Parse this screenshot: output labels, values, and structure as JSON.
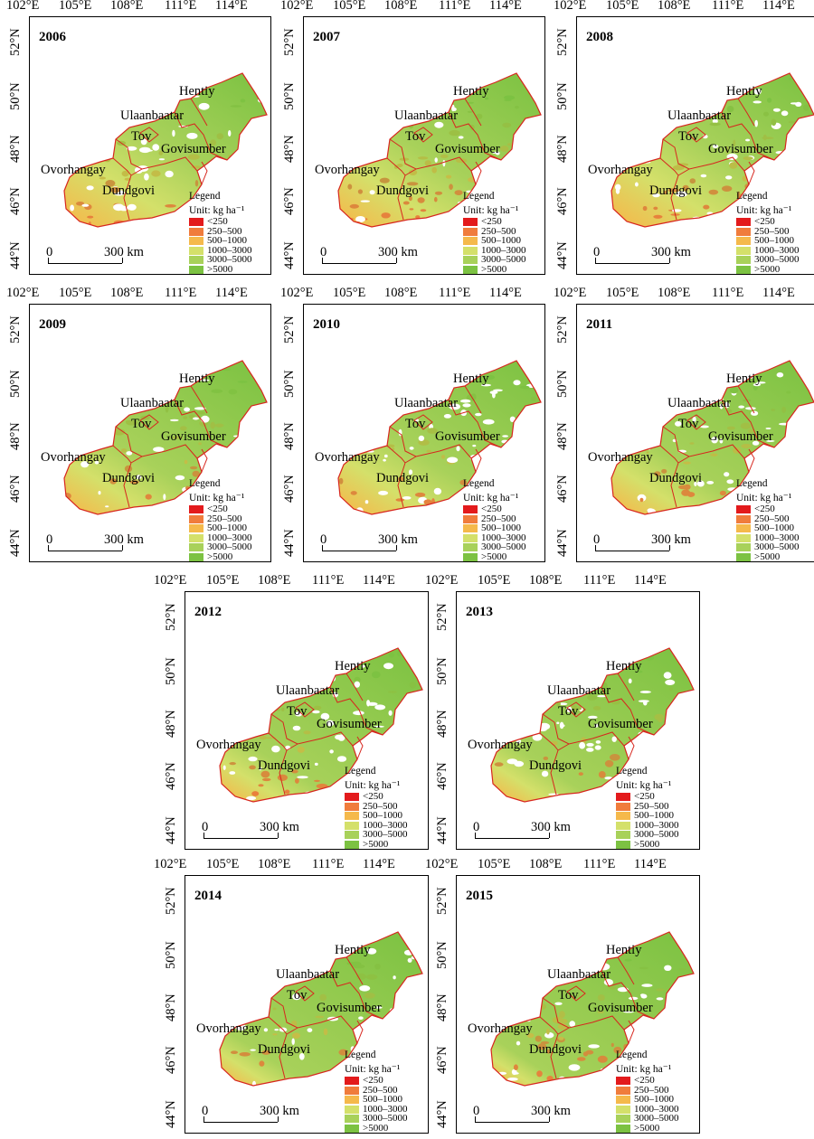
{
  "longitude_labels": [
    "102°E",
    "105°E",
    "108°E",
    "111°E",
    "114°E"
  ],
  "latitude_labels": [
    "52°N",
    "50°N",
    "48°N",
    "46°N",
    "44°N"
  ],
  "years": [
    "2006",
    "2007",
    "2008",
    "2009",
    "2010",
    "2011",
    "2012",
    "2013",
    "2014",
    "2015"
  ],
  "regions": {
    "hentiy": "Hentiy",
    "ulaanbaatar": "Ulaanbaatar",
    "tov": "Tov",
    "govisumber": "Govisumber",
    "ovorhangay": "Ovorhangay",
    "dundgovi": "Dundgovi"
  },
  "legend": {
    "title": "Legend",
    "unit": "Unit: kg ha⁻¹",
    "classes": [
      {
        "label": "<250",
        "color": "#e31a1c"
      },
      {
        "label": "250–500",
        "color": "#f07c3c"
      },
      {
        "label": "500–1000",
        "color": "#f5b94b"
      },
      {
        "label": "1000–3000",
        "color": "#d4e06a"
      },
      {
        "label": "3000–5000",
        "color": "#a8d15a"
      },
      {
        "label": ">5000",
        "color": "#7cc242"
      }
    ]
  },
  "scale_bar": {
    "start": "0",
    "end": "300 km"
  },
  "boundary_color": "#d7261e"
}
